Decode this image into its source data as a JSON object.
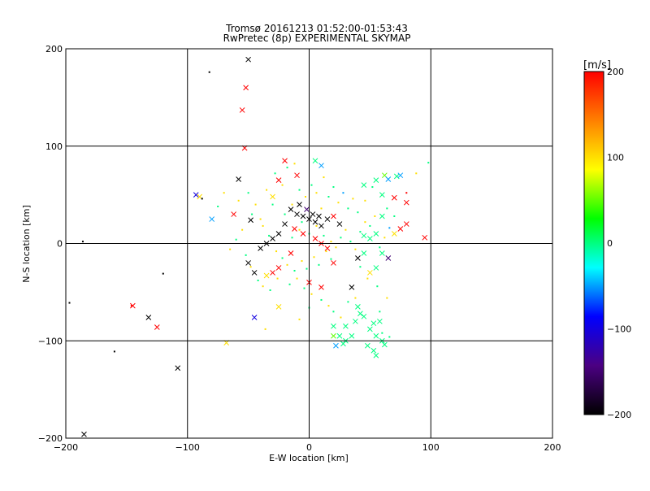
{
  "chart_data": {
    "type": "scatter",
    "title_line1": "Tromsø 20161213 01:52:00-01:53:43",
    "title_line2": "RwPretec (8p) EXPERIMENTAL SKYMAP",
    "xlabel": "E-W location [km]",
    "ylabel": "N-S location [km]",
    "xlim": [
      -200,
      200
    ],
    "ylim": [
      -200,
      200
    ],
    "xticks": [
      -200,
      -100,
      0,
      100,
      200
    ],
    "yticks": [
      -200,
      -100,
      0,
      100,
      200
    ],
    "xtick_labels": [
      "−200",
      "−100",
      "0",
      "100",
      "200"
    ],
    "ytick_labels": [
      "−200",
      "−100",
      "0",
      "100",
      "200"
    ],
    "grid": true,
    "colorbar": {
      "label": "[m/s]",
      "range": [
        -200,
        200
      ],
      "ticks": [
        -200,
        -100,
        0,
        100,
        200
      ],
      "tick_labels": [
        "−200",
        "−100",
        "0",
        "100",
        "200"
      ],
      "colors": [
        "#000000",
        "#4b0082",
        "#0000ff",
        "#00ffff",
        "#00ff00",
        "#ffff00",
        "#ff8000",
        "#ff0000"
      ]
    },
    "series": [
      {
        "name": "crosses",
        "marker": "x",
        "points": [
          [
            -50,
            189,
            -200
          ],
          [
            -52,
            160,
            200
          ],
          [
            -55,
            137,
            200
          ],
          [
            -53,
            98,
            200
          ],
          [
            -58,
            66,
            -200
          ],
          [
            -93,
            50,
            -100
          ],
          [
            -90,
            48,
            100
          ],
          [
            -80,
            25,
            -50
          ],
          [
            -62,
            30,
            200
          ],
          [
            -48,
            24,
            -200
          ],
          [
            -30,
            48,
            100
          ],
          [
            -25,
            65,
            200
          ],
          [
            -20,
            85,
            200
          ],
          [
            -10,
            70,
            200
          ],
          [
            5,
            85,
            0
          ],
          [
            10,
            80,
            -50
          ],
          [
            -15,
            35,
            -200
          ],
          [
            -10,
            30,
            -200
          ],
          [
            -5,
            28,
            -200
          ],
          [
            0,
            25,
            -200
          ],
          [
            5,
            22,
            -200
          ],
          [
            10,
            18,
            -200
          ],
          [
            -20,
            20,
            -200
          ],
          [
            -25,
            10,
            -200
          ],
          [
            -30,
            5,
            -200
          ],
          [
            -35,
            0,
            -200
          ],
          [
            -40,
            -5,
            -200
          ],
          [
            -8,
            40,
            -200
          ],
          [
            -2,
            35,
            -150
          ],
          [
            3,
            30,
            -200
          ],
          [
            8,
            28,
            -200
          ],
          [
            15,
            25,
            -200
          ],
          [
            20,
            28,
            200
          ],
          [
            25,
            20,
            -200
          ],
          [
            -12,
            15,
            200
          ],
          [
            -5,
            10,
            200
          ],
          [
            5,
            5,
            200
          ],
          [
            10,
            0,
            200
          ],
          [
            15,
            -5,
            200
          ],
          [
            -15,
            -10,
            200
          ],
          [
            -25,
            -25,
            200
          ],
          [
            -30,
            -30,
            200
          ],
          [
            -35,
            -33,
            100
          ],
          [
            0,
            -40,
            200
          ],
          [
            10,
            -45,
            200
          ],
          [
            20,
            -20,
            200
          ],
          [
            -50,
            -20,
            -200
          ],
          [
            -45,
            -30,
            -200
          ],
          [
            35,
            -45,
            -200
          ],
          [
            40,
            -15,
            -200
          ],
          [
            45,
            -10,
            0
          ],
          [
            60,
            -10,
            0
          ],
          [
            65,
            -15,
            -150
          ],
          [
            70,
            10,
            100
          ],
          [
            75,
            15,
            200
          ],
          [
            80,
            20,
            200
          ],
          [
            80,
            42,
            200
          ],
          [
            70,
            47,
            200
          ],
          [
            95,
            6,
            200
          ],
          [
            62,
            70,
            50
          ],
          [
            65,
            66,
            -50
          ],
          [
            72,
            69,
            0
          ],
          [
            75,
            70,
            -50
          ],
          [
            55,
            65,
            0
          ],
          [
            45,
            60,
            0
          ],
          [
            60,
            50,
            0
          ],
          [
            60,
            28,
            0
          ],
          [
            45,
            8,
            0
          ],
          [
            50,
            5,
            0
          ],
          [
            55,
            10,
            0
          ],
          [
            50,
            -30,
            100
          ],
          [
            55,
            -25,
            0
          ],
          [
            40,
            -65,
            0
          ],
          [
            42,
            -72,
            0
          ],
          [
            45,
            -75,
            0
          ],
          [
            38,
            -80,
            0
          ],
          [
            30,
            -85,
            0
          ],
          [
            25,
            -95,
            0
          ],
          [
            35,
            -95,
            0
          ],
          [
            30,
            -100,
            0
          ],
          [
            20,
            -85,
            0
          ],
          [
            50,
            -88,
            0
          ],
          [
            53,
            -82,
            0
          ],
          [
            58,
            -80,
            0
          ],
          [
            55,
            -95,
            0
          ],
          [
            60,
            -100,
            0
          ],
          [
            62,
            -104,
            0
          ],
          [
            53,
            -110,
            0
          ],
          [
            55,
            -115,
            0
          ],
          [
            48,
            -105,
            0
          ],
          [
            20,
            -95,
            50
          ],
          [
            22,
            -105,
            -50
          ],
          [
            28,
            -103,
            0
          ],
          [
            -25,
            -65,
            100
          ],
          [
            -45,
            -76,
            -100
          ],
          [
            -145,
            -64,
            200
          ],
          [
            -132,
            -76,
            -200
          ],
          [
            -125,
            -86,
            200
          ],
          [
            -108,
            -128,
            -200
          ],
          [
            -68,
            -102,
            100
          ],
          [
            -185,
            -196,
            -200
          ]
        ]
      },
      {
        "name": "dots",
        "marker": "dot",
        "points": [
          [
            -82,
            176,
            -200
          ],
          [
            -88,
            46,
            -200
          ],
          [
            -47,
            30,
            0
          ],
          [
            -40,
            25,
            100
          ],
          [
            -35,
            55,
            100
          ],
          [
            -30,
            40,
            0
          ],
          [
            -28,
            72,
            0
          ],
          [
            -22,
            60,
            100
          ],
          [
            -18,
            78,
            0
          ],
          [
            -12,
            82,
            100
          ],
          [
            -8,
            55,
            0
          ],
          [
            -3,
            48,
            100
          ],
          [
            2,
            60,
            0
          ],
          [
            6,
            52,
            100
          ],
          [
            12,
            68,
            100
          ],
          [
            16,
            48,
            0
          ],
          [
            20,
            58,
            0
          ],
          [
            24,
            42,
            100
          ],
          [
            28,
            52,
            -50
          ],
          [
            32,
            36,
            0
          ],
          [
            36,
            46,
            100
          ],
          [
            40,
            32,
            0
          ],
          [
            -38,
            18,
            100
          ],
          [
            -33,
            8,
            0
          ],
          [
            -27,
            -8,
            100
          ],
          [
            -22,
            -15,
            0
          ],
          [
            -18,
            -22,
            100
          ],
          [
            -12,
            -28,
            0
          ],
          [
            -6,
            -18,
            100
          ],
          [
            -2,
            -26,
            0
          ],
          [
            4,
            -14,
            100
          ],
          [
            8,
            -22,
            0
          ],
          [
            14,
            -8,
            100
          ],
          [
            18,
            -16,
            0
          ],
          [
            22,
            -4,
            100
          ],
          [
            26,
            6,
            0
          ],
          [
            30,
            14,
            100
          ],
          [
            34,
            2,
            0
          ],
          [
            38,
            -6,
            100
          ],
          [
            42,
            12,
            0
          ],
          [
            46,
            22,
            100
          ],
          [
            50,
            18,
            0
          ],
          [
            54,
            28,
            100
          ],
          [
            58,
            -4,
            0
          ],
          [
            62,
            6,
            100
          ],
          [
            66,
            16,
            -50
          ],
          [
            70,
            28,
            0
          ],
          [
            -55,
            14,
            100
          ],
          [
            -60,
            4,
            0
          ],
          [
            -65,
            -6,
            100
          ],
          [
            -52,
            -12,
            0
          ],
          [
            -48,
            -24,
            100
          ],
          [
            -42,
            -38,
            0
          ],
          [
            -38,
            -44,
            100
          ],
          [
            -32,
            -48,
            0
          ],
          [
            -26,
            -36,
            100
          ],
          [
            -16,
            -42,
            0
          ],
          [
            -10,
            -36,
            100
          ],
          [
            -4,
            -46,
            0
          ],
          [
            2,
            -52,
            100
          ],
          [
            10,
            -58,
            0
          ],
          [
            16,
            -64,
            100
          ],
          [
            20,
            -70,
            0
          ],
          [
            26,
            -76,
            100
          ],
          [
            32,
            -60,
            0
          ],
          [
            38,
            -56,
            100
          ],
          [
            -14,
            6,
            0
          ],
          [
            -8,
            14,
            100
          ],
          [
            0,
            10,
            0
          ],
          [
            6,
            18,
            100
          ],
          [
            12,
            8,
            0
          ],
          [
            18,
            2,
            100
          ],
          [
            -20,
            30,
            0
          ],
          [
            -14,
            40,
            100
          ],
          [
            -6,
            22,
            0
          ],
          [
            10,
            36,
            100
          ],
          [
            -186,
            2,
            -200
          ],
          [
            -197,
            -61,
            -200
          ],
          [
            -160,
            -111,
            -200
          ],
          [
            -120,
            -31,
            -200
          ],
          [
            -146,
            -64,
            200
          ],
          [
            -36,
            -88,
            100
          ],
          [
            -8,
            -78,
            100
          ],
          [
            0,
            -66,
            0
          ],
          [
            80,
            52,
            200
          ],
          [
            98,
            83,
            0
          ],
          [
            88,
            72,
            100
          ],
          [
            52,
            58,
            0
          ],
          [
            46,
            44,
            100
          ],
          [
            64,
            36,
            0
          ],
          [
            42,
            -24,
            0
          ],
          [
            48,
            -36,
            100
          ],
          [
            56,
            -44,
            0
          ],
          [
            64,
            -56,
            100
          ],
          [
            58,
            -70,
            0
          ],
          [
            60,
            -92,
            0
          ],
          [
            66,
            -96,
            0
          ],
          [
            -70,
            52,
            100
          ],
          [
            -75,
            38,
            0
          ],
          [
            -58,
            44,
            100
          ],
          [
            -50,
            52,
            0
          ],
          [
            -44,
            40,
            100
          ]
        ]
      }
    ]
  }
}
